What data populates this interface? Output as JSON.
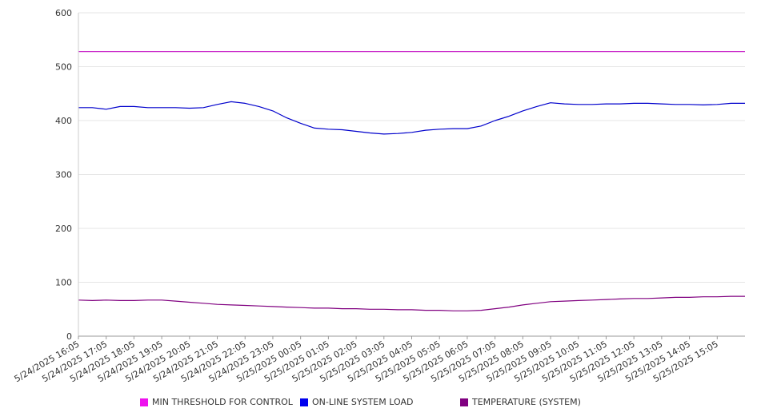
{
  "chart_data": {
    "type": "line",
    "title": "",
    "xlabel": "",
    "ylabel": "",
    "ylim": [
      0,
      600
    ],
    "yticks": [
      0,
      100,
      200,
      300,
      400,
      500,
      600
    ],
    "grid": true,
    "legend_position": "bottom",
    "x_tick_labels": [
      "5/24/2025 16:05",
      "5/24/2025 17:05",
      "5/24/2025 18:05",
      "5/24/2025 19:05",
      "5/24/2025 20:05",
      "5/24/2025 21:05",
      "5/24/2025 22:05",
      "5/24/2025 23:05",
      "5/25/2025 00:05",
      "5/25/2025 01:05",
      "5/25/2025 02:05",
      "5/25/2025 03:05",
      "5/25/2025 04:05",
      "5/25/2025 05:05",
      "5/25/2025 06:05",
      "5/25/2025 07:05",
      "5/25/2025 08:05",
      "5/25/2025 09:05",
      "5/25/2025 10:05",
      "5/25/2025 11:05",
      "5/25/2025 12:05",
      "5/25/2025 13:05",
      "5/25/2025 14:05",
      "5/25/2025 15:05"
    ],
    "x": [
      "5/24/2025 16:05",
      "5/24/2025 16:35",
      "5/24/2025 17:05",
      "5/24/2025 17:35",
      "5/24/2025 18:05",
      "5/24/2025 18:35",
      "5/24/2025 19:05",
      "5/24/2025 19:35",
      "5/24/2025 20:05",
      "5/24/2025 20:35",
      "5/24/2025 21:05",
      "5/24/2025 21:35",
      "5/24/2025 22:05",
      "5/24/2025 22:35",
      "5/24/2025 23:05",
      "5/24/2025 23:35",
      "5/25/2025 00:05",
      "5/25/2025 00:35",
      "5/25/2025 01:05",
      "5/25/2025 01:35",
      "5/25/2025 02:05",
      "5/25/2025 02:35",
      "5/25/2025 03:05",
      "5/25/2025 03:35",
      "5/25/2025 04:05",
      "5/25/2025 04:35",
      "5/25/2025 05:05",
      "5/25/2025 05:35",
      "5/25/2025 06:05",
      "5/25/2025 06:35",
      "5/25/2025 07:05",
      "5/25/2025 07:35",
      "5/25/2025 08:05",
      "5/25/2025 08:35",
      "5/25/2025 09:05",
      "5/25/2025 09:35",
      "5/25/2025 10:05",
      "5/25/2025 10:35",
      "5/25/2025 11:05",
      "5/25/2025 11:35",
      "5/25/2025 12:05",
      "5/25/2025 12:35",
      "5/25/2025 13:05",
      "5/25/2025 13:35",
      "5/25/2025 14:05",
      "5/25/2025 14:35",
      "5/25/2025 15:05",
      "5/25/2025 15:35",
      "5/25/2025 16:00"
    ],
    "series": [
      {
        "name": "MIN THRESHOLD FOR CONTROL",
        "color": "#cc33cc",
        "values": [
          528,
          528,
          528,
          528,
          528,
          528,
          528,
          528,
          528,
          528,
          528,
          528,
          528,
          528,
          528,
          528,
          528,
          528,
          528,
          528,
          528,
          528,
          528,
          528,
          528,
          528,
          528,
          528,
          528,
          528,
          528,
          528,
          528,
          528,
          528,
          528,
          528,
          528,
          528,
          528,
          528,
          528,
          528,
          528,
          528,
          528,
          528,
          528,
          528
        ]
      },
      {
        "name": "ON-LINE SYSTEM LOAD",
        "color": "#0000cc",
        "values": [
          424,
          424,
          421,
          426,
          426,
          424,
          424,
          424,
          423,
          424,
          430,
          435,
          432,
          426,
          418,
          405,
          395,
          386,
          384,
          383,
          380,
          377,
          375,
          376,
          378,
          382,
          384,
          385,
          385,
          390,
          400,
          408,
          418,
          426,
          433,
          431,
          430,
          430,
          431,
          431,
          432,
          432,
          431,
          430,
          430,
          429,
          430,
          432,
          432
        ]
      },
      {
        "name": "TEMPERATURE (SYSTEM)",
        "color": "#800080",
        "values": [
          67,
          66,
          67,
          66,
          66,
          67,
          67,
          65,
          63,
          61,
          59,
          58,
          57,
          56,
          55,
          54,
          53,
          52,
          52,
          51,
          51,
          50,
          50,
          49,
          49,
          48,
          48,
          47,
          47,
          48,
          51,
          54,
          58,
          61,
          64,
          65,
          66,
          67,
          68,
          69,
          70,
          70,
          71,
          72,
          72,
          73,
          73,
          74,
          74
        ]
      }
    ]
  }
}
